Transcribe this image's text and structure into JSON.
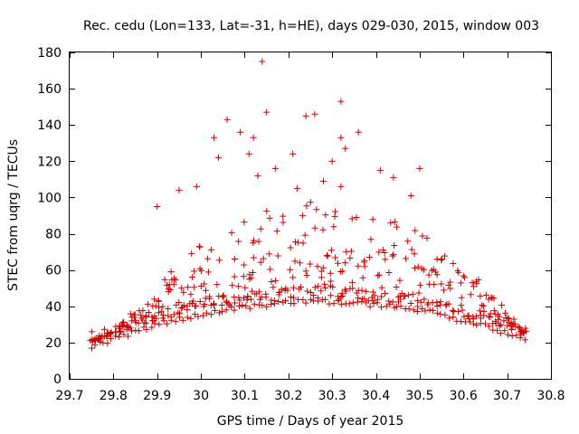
{
  "chart_data": {
    "type": "scatter",
    "title": "Rec. cedu (Lon=133, Lat=-31, h=HE), days 029-030, 2015, window 003",
    "xlabel": "GPS time / Days of year 2015",
    "ylabel": "STEC from uqrg / TECUs",
    "xlim": [
      29.7,
      30.8
    ],
    "ylim": [
      0,
      180
    ],
    "x_ticks": [
      29.7,
      29.8,
      29.9,
      30.0,
      30.1,
      30.2,
      30.3,
      30.4,
      30.5,
      30.6,
      30.7,
      30.8
    ],
    "x_tick_labels": [
      "29.7",
      "29.8",
      "29.9",
      "30",
      "30.1",
      "30.2",
      "30.3",
      "30.4",
      "30.5",
      "30.6",
      "30.7",
      "30.8"
    ],
    "y_ticks": [
      0,
      20,
      40,
      60,
      80,
      100,
      120,
      140,
      160,
      180
    ],
    "y_tick_labels": [
      "0",
      "20",
      "40",
      "60",
      "80",
      "100",
      "120",
      "140",
      "160",
      "180"
    ],
    "marker": "plus",
    "color": "#cc0000",
    "x_extent": [
      29.75,
      30.74
    ],
    "peak_points": [
      {
        "x": 30.14,
        "y": 175
      },
      {
        "x": 30.32,
        "y": 153
      },
      {
        "x": 30.15,
        "y": 147
      },
      {
        "x": 30.26,
        "y": 146
      },
      {
        "x": 30.24,
        "y": 145
      },
      {
        "x": 30.06,
        "y": 143
      },
      {
        "x": 30.36,
        "y": 136
      },
      {
        "x": 30.09,
        "y": 136
      },
      {
        "x": 30.03,
        "y": 133
      },
      {
        "x": 30.12,
        "y": 133
      },
      {
        "x": 30.32,
        "y": 133
      },
      {
        "x": 30.33,
        "y": 127
      },
      {
        "x": 30.11,
        "y": 124
      },
      {
        "x": 30.21,
        "y": 124
      },
      {
        "x": 30.04,
        "y": 122
      },
      {
        "x": 30.3,
        "y": 120
      },
      {
        "x": 30.5,
        "y": 116
      },
      {
        "x": 30.17,
        "y": 116
      },
      {
        "x": 30.41,
        "y": 115
      },
      {
        "x": 30.44,
        "y": 111
      },
      {
        "x": 30.13,
        "y": 112
      },
      {
        "x": 30.28,
        "y": 109
      },
      {
        "x": 30.32,
        "y": 106
      },
      {
        "x": 29.99,
        "y": 106
      },
      {
        "x": 30.22,
        "y": 105
      },
      {
        "x": 29.95,
        "y": 104
      },
      {
        "x": 30.48,
        "y": 101
      },
      {
        "x": 29.9,
        "y": 95
      }
    ]
  }
}
